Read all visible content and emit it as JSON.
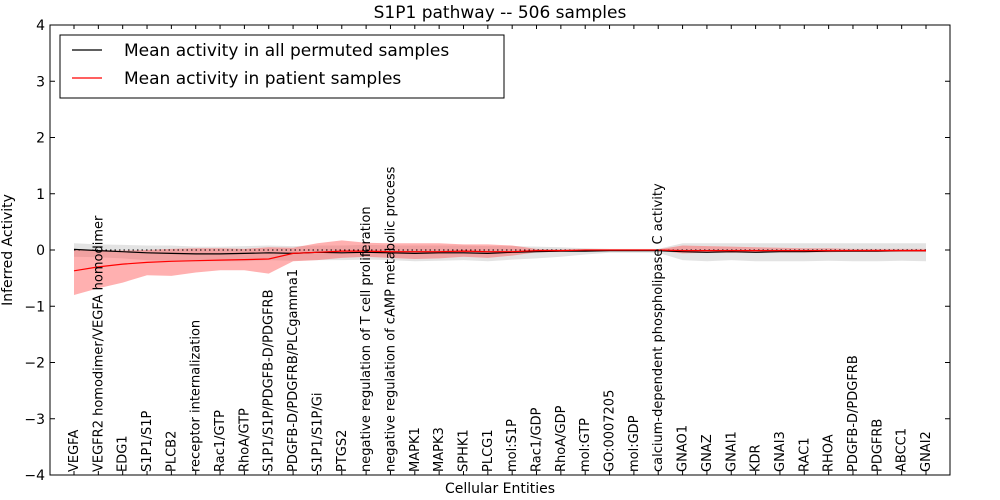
{
  "chart_data": {
    "type": "line",
    "title": "S1P1 pathway -- 506 samples",
    "xlabel": "Cellular Entities",
    "ylabel": "Inferred Activity",
    "ylim": [
      -4,
      4
    ],
    "yticks": [
      -4,
      -3,
      -2,
      -1,
      0,
      1,
      2,
      3,
      4
    ],
    "legend_position": "upper-left",
    "categories": [
      "VEGFA",
      "VEGFR2 homodimer/VEGFA homodimer",
      "EDG1",
      "S1P1/S1P",
      "PLCB2",
      "receptor internalization",
      "Rac1/GTP",
      "RhoA/GTP",
      "S1P1/S1P/PDGFB-D/PDGFRB",
      "PDGFB-D/PDGFRB/PLCgamma1",
      "S1P1/S1P/Gi",
      "PTGS2",
      "negative regulation of T cell proliferation",
      "negative regulation of cAMP metabolic process",
      "MAPK1",
      "MAPK3",
      "SPHK1",
      "PLCG1",
      "mol:S1P",
      "Rac1/GDP",
      "RhoA/GDP",
      "mol:GTP",
      "GO:0007205",
      "mol:GDP",
      "calcium-dependent phospholipase C activity",
      "GNAO1",
      "GNAZ",
      "GNAI1",
      "KDR",
      "GNAI3",
      "RAC1",
      "RHOA",
      "PDGFB-D/PDGFRB",
      "PDGFRB",
      "ABCC1",
      "GNAI2"
    ],
    "series": [
      {
        "name": "Mean activity in all permuted samples",
        "color": "#000000",
        "band_color": "#b0b0b0",
        "values": [
          0.01,
          -0.01,
          -0.03,
          -0.05,
          -0.06,
          -0.07,
          -0.07,
          -0.06,
          -0.05,
          -0.06,
          -0.04,
          -0.05,
          -0.04,
          -0.05,
          -0.06,
          -0.05,
          -0.05,
          -0.06,
          -0.04,
          -0.03,
          -0.02,
          -0.02,
          -0.01,
          -0.01,
          -0.01,
          -0.03,
          -0.04,
          -0.03,
          -0.04,
          -0.03,
          -0.03,
          -0.02,
          -0.02,
          -0.02,
          -0.01,
          -0.01
        ],
        "upper": [
          0.12,
          0.1,
          0.09,
          0.08,
          0.08,
          0.06,
          0.06,
          0.07,
          0.08,
          0.07,
          0.08,
          0.08,
          0.09,
          0.08,
          0.08,
          0.08,
          0.08,
          0.07,
          0.07,
          0.06,
          0.05,
          0.03,
          0.02,
          0.02,
          0.02,
          0.12,
          0.12,
          0.12,
          0.12,
          0.12,
          0.12,
          0.12,
          0.12,
          0.12,
          0.12,
          0.12
        ],
        "lower": [
          -0.12,
          -0.13,
          -0.15,
          -0.18,
          -0.2,
          -0.2,
          -0.2,
          -0.2,
          -0.18,
          -0.19,
          -0.18,
          -0.18,
          -0.17,
          -0.18,
          -0.2,
          -0.19,
          -0.18,
          -0.2,
          -0.17,
          -0.15,
          -0.12,
          -0.08,
          -0.05,
          -0.05,
          -0.05,
          -0.18,
          -0.2,
          -0.18,
          -0.2,
          -0.2,
          -0.2,
          -0.19,
          -0.2,
          -0.2,
          -0.19,
          -0.2
        ]
      },
      {
        "name": "Mean activity in patient samples",
        "color": "#ff0000",
        "band_color": "#ff5050",
        "values": [
          -0.37,
          -0.3,
          -0.25,
          -0.22,
          -0.2,
          -0.19,
          -0.18,
          -0.17,
          -0.16,
          -0.06,
          -0.04,
          -0.02,
          -0.02,
          -0.03,
          -0.03,
          -0.03,
          -0.02,
          -0.03,
          -0.03,
          -0.01,
          -0.01,
          0.0,
          0.0,
          0.0,
          0.0,
          -0.01,
          -0.01,
          -0.01,
          -0.01,
          -0.01,
          -0.01,
          -0.01,
          -0.01,
          -0.01,
          -0.01,
          -0.01
        ],
        "upper": [
          0.02,
          0.0,
          -0.01,
          0.0,
          0.02,
          0.03,
          0.03,
          0.02,
          0.05,
          0.04,
          0.12,
          0.17,
          0.13,
          0.12,
          0.12,
          0.12,
          0.1,
          0.1,
          0.08,
          0.02,
          0.01,
          0.01,
          0.01,
          0.01,
          0.01,
          0.08,
          0.07,
          0.06,
          0.05,
          0.04,
          0.03,
          0.03,
          0.02,
          0.02,
          0.02,
          0.02
        ],
        "lower": [
          -0.8,
          -0.68,
          -0.58,
          -0.45,
          -0.46,
          -0.4,
          -0.36,
          -0.36,
          -0.42,
          -0.2,
          -0.18,
          -0.14,
          -0.12,
          -0.14,
          -0.16,
          -0.15,
          -0.12,
          -0.14,
          -0.1,
          -0.04,
          -0.03,
          -0.01,
          -0.01,
          -0.01,
          -0.01,
          -0.06,
          -0.05,
          -0.05,
          -0.05,
          -0.04,
          -0.04,
          -0.04,
          -0.03,
          -0.03,
          -0.03,
          -0.03
        ]
      }
    ],
    "reference_line": {
      "y": 0,
      "style": "dotted"
    }
  }
}
